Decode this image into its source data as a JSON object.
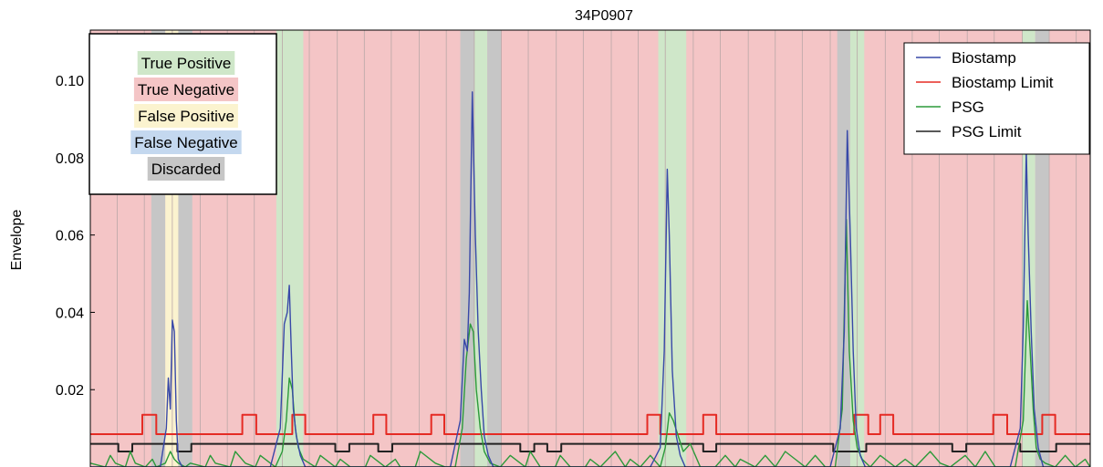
{
  "chart_data": {
    "type": "line",
    "title": "34P0907",
    "xlabel": "",
    "ylabel": "Envelope",
    "ylim": [
      0,
      0.113
    ],
    "y_ticks": [
      "0.02",
      "0.04",
      "0.06",
      "0.08",
      "0.10"
    ],
    "y_tick_values": [
      0.02,
      0.04,
      0.06,
      0.08,
      0.1
    ],
    "grid": false,
    "x_domain": [
      0,
      100
    ],
    "epoch_boundaries": [
      0,
      2.7,
      5.4,
      8.2,
      11.0,
      13.7,
      16.4,
      19.2,
      21.9,
      24.7,
      27.4,
      30.1,
      32.9,
      35.6,
      38.4,
      41.1,
      43.8,
      46.6,
      49.3,
      52.1,
      54.8,
      57.5,
      60.3,
      63.0,
      65.8,
      68.5,
      71.2,
      74.0,
      76.7,
      79.5,
      82.2,
      84.9,
      87.7,
      90.4,
      93.2,
      95.9,
      98.6,
      100
    ],
    "shaded_regions": [
      {
        "start": 6.1,
        "end": 7.5,
        "label": "Discarded"
      },
      {
        "start": 7.5,
        "end": 8.8,
        "label": "False Positive"
      },
      {
        "start": 8.8,
        "end": 10.2,
        "label": "Discarded"
      },
      {
        "start": 18.6,
        "end": 21.3,
        "label": "True Positive"
      },
      {
        "start": 37.0,
        "end": 38.4,
        "label": "Discarded"
      },
      {
        "start": 38.4,
        "end": 39.7,
        "label": "True Positive"
      },
      {
        "start": 39.7,
        "end": 41.1,
        "label": "Discarded"
      },
      {
        "start": 56.8,
        "end": 59.6,
        "label": "True Positive"
      },
      {
        "start": 74.7,
        "end": 76.0,
        "label": "Discarded"
      },
      {
        "start": 76.0,
        "end": 77.4,
        "label": "True Positive"
      },
      {
        "start": 93.2,
        "end": 94.5,
        "label": "True Positive"
      },
      {
        "start": 94.5,
        "end": 95.9,
        "label": "Discarded"
      }
    ],
    "default_region_label": "True Negative",
    "class_legend": [
      {
        "label": "True Positive",
        "color": "#cfe7c9"
      },
      {
        "label": "True Negative",
        "color": "#f4c5c6"
      },
      {
        "label": "False Positive",
        "color": "#fbf3cf"
      },
      {
        "label": "False Negative",
        "color": "#c4d8ef"
      },
      {
        "label": "Discarded",
        "color": "#c6c6c6"
      }
    ],
    "series": [
      {
        "name": "Biostamp",
        "color": "#3848a8",
        "x": [
          0,
          5,
          7.0,
          7.6,
          7.8,
          8.0,
          8.2,
          8.4,
          8.6,
          8.8,
          9.2,
          10,
          18,
          19.0,
          19.4,
          19.7,
          19.9,
          20.1,
          20.3,
          20.6,
          21.0,
          21.5,
          22,
          36,
          37.0,
          37.4,
          37.7,
          37.9,
          38.2,
          38.5,
          38.8,
          39.1,
          39.4,
          39.8,
          40.3,
          41,
          56,
          57.0,
          57.4,
          57.7,
          57.9,
          58.2,
          58.6,
          59.0,
          59.5,
          60,
          74,
          75.0,
          75.4,
          75.7,
          76.0,
          76.3,
          76.6,
          77.0,
          77.5,
          78,
          92,
          93.0,
          93.3,
          93.6,
          93.8,
          94.1,
          94.4,
          94.8,
          95.3,
          96,
          100
        ],
        "values": [
          0.0,
          0.0,
          0.0,
          0.01,
          0.023,
          0.015,
          0.038,
          0.035,
          0.012,
          0.002,
          0.0,
          0.0,
          0.0,
          0.01,
          0.037,
          0.04,
          0.047,
          0.03,
          0.015,
          0.008,
          0.003,
          0.0,
          0.0,
          0.0,
          0.012,
          0.033,
          0.03,
          0.045,
          0.097,
          0.06,
          0.035,
          0.02,
          0.008,
          0.003,
          0.0,
          0.0,
          0.0,
          0.005,
          0.03,
          0.077,
          0.06,
          0.025,
          0.008,
          0.003,
          0.0,
          0.0,
          0.0,
          0.01,
          0.035,
          0.087,
          0.06,
          0.03,
          0.01,
          0.003,
          0.0,
          0.0,
          0.0,
          0.01,
          0.036,
          0.082,
          0.06,
          0.035,
          0.015,
          0.005,
          0.0,
          0.0,
          0.0
        ]
      },
      {
        "name": "Biostamp Limit",
        "color": "#e52b24",
        "x": [
          0,
          5.2,
          5.2,
          6.6,
          6.6,
          15.2,
          15.2,
          16.6,
          16.6,
          20.2,
          20.2,
          21.5,
          21.5,
          28.3,
          28.3,
          29.6,
          29.6,
          34.1,
          34.1,
          35.4,
          35.4,
          55.7,
          55.7,
          57.0,
          57.0,
          61.3,
          61.3,
          62.6,
          62.6,
          76.4,
          76.4,
          77.8,
          77.8,
          79.0,
          79.0,
          80.3,
          80.3,
          90.3,
          90.3,
          91.7,
          91.7,
          95.2,
          95.2,
          96.5,
          96.5,
          100
        ],
        "values": [
          0.0085,
          0.0085,
          0.0135,
          0.0135,
          0.0085,
          0.0085,
          0.0135,
          0.0135,
          0.0085,
          0.0085,
          0.0135,
          0.0135,
          0.0085,
          0.0085,
          0.0135,
          0.0135,
          0.0085,
          0.0085,
          0.0135,
          0.0135,
          0.0085,
          0.0085,
          0.0135,
          0.0135,
          0.0085,
          0.0085,
          0.0135,
          0.0135,
          0.0085,
          0.0085,
          0.0135,
          0.0135,
          0.0085,
          0.0085,
          0.0135,
          0.0135,
          0.0085,
          0.0085,
          0.0135,
          0.0135,
          0.0085,
          0.0085,
          0.0135,
          0.0135,
          0.0085,
          0.0085
        ]
      },
      {
        "name": "PSG",
        "color": "#2c9a3a",
        "x": [
          0,
          1.5,
          2.0,
          2.5,
          3.5,
          4.0,
          4.5,
          5.5,
          6.2,
          6.6,
          7.5,
          8.0,
          8.4,
          8.8,
          9.5,
          10.0,
          11.5,
          12.0,
          12.5,
          14.0,
          14.5,
          15.5,
          16.5,
          17.0,
          18.5,
          19.2,
          19.6,
          19.9,
          20.2,
          20.5,
          20.8,
          21.3,
          22.5,
          23.0,
          24.5,
          25.0,
          26.0,
          27.5,
          28.0,
          29.5,
          30.5,
          31.0,
          32.5,
          33.0,
          34.5,
          35.5,
          36.5,
          37.2,
          37.6,
          38.0,
          38.3,
          38.6,
          39.0,
          39.4,
          40.0,
          41.0,
          42.0,
          43.5,
          44.0,
          45.0,
          46.5,
          47.0,
          48.0,
          49.5,
          50.0,
          51.0,
          52.5,
          53.5,
          54.0,
          55.0,
          56.0,
          57.0,
          57.5,
          57.9,
          58.3,
          58.8,
          59.3,
          60.0,
          61.0,
          62.5,
          63.5,
          64.5,
          65.0,
          66.5,
          67.5,
          68.5,
          69.5,
          70.5,
          71.5,
          72.5,
          73.5,
          74.5,
          75.2,
          75.6,
          75.9,
          76.3,
          76.7,
          77.2,
          78.0,
          79.0,
          80.5,
          81.5,
          82.5,
          84.0,
          85.0,
          86.0,
          87.5,
          88.5,
          89.5,
          90.5,
          91.5,
          92.5,
          93.3,
          93.7,
          94.0,
          94.3,
          94.6,
          95.0,
          95.5,
          96.5,
          97.5,
          98.5,
          99.5,
          100
        ],
        "values": [
          0.001,
          0.0,
          0.003,
          0.001,
          0.0,
          0.004,
          0.001,
          0.0,
          0.002,
          0.0,
          0.001,
          0.004,
          0.002,
          0.001,
          0.0,
          0.001,
          0.0,
          0.003,
          0.001,
          0.0,
          0.004,
          0.001,
          0.0,
          0.003,
          0.0,
          0.004,
          0.012,
          0.023,
          0.02,
          0.01,
          0.005,
          0.002,
          0.0,
          0.003,
          0.0,
          0.002,
          0.0,
          0.0,
          0.003,
          0.0,
          0.002,
          0.0,
          0.0,
          0.004,
          0.001,
          0.0,
          0.0,
          0.01,
          0.028,
          0.037,
          0.035,
          0.02,
          0.01,
          0.004,
          0.001,
          0.0,
          0.003,
          0.0,
          0.004,
          0.0,
          0.0,
          0.003,
          0.0,
          0.0,
          0.002,
          0.0,
          0.004,
          0.0,
          0.002,
          0.0,
          0.003,
          0.0,
          0.005,
          0.014,
          0.012,
          0.008,
          0.004,
          0.006,
          0.0,
          0.0,
          0.003,
          0.0,
          0.002,
          0.0,
          0.003,
          0.0,
          0.004,
          0.002,
          0.0,
          0.003,
          0.0,
          0.0,
          0.015,
          0.064,
          0.03,
          0.012,
          0.005,
          0.002,
          0.0,
          0.003,
          0.0,
          0.002,
          0.0,
          0.004,
          0.001,
          0.0,
          0.003,
          0.0,
          0.004,
          0.0,
          0.0,
          0.0,
          0.012,
          0.043,
          0.03,
          0.015,
          0.005,
          0.002,
          0.001,
          0.0,
          0.003,
          0.0,
          0.002,
          0.0
        ]
      },
      {
        "name": "PSG Limit",
        "color": "#222222",
        "x": [
          0,
          2.8,
          2.8,
          4.2,
          4.2,
          8.7,
          8.7,
          10.1,
          10.1,
          24.5,
          24.5,
          25.9,
          25.9,
          28.8,
          28.8,
          30.2,
          30.2,
          43.0,
          43.0,
          44.4,
          44.4,
          45.7,
          45.7,
          47.1,
          47.1,
          61.3,
          61.3,
          62.6,
          62.6,
          74.3,
          74.3,
          77.6,
          77.6,
          86.2,
          86.2,
          87.6,
          87.6,
          93.0,
          93.0,
          96.6,
          96.6,
          100
        ],
        "values": [
          0.006,
          0.006,
          0.004,
          0.004,
          0.006,
          0.006,
          0.004,
          0.004,
          0.006,
          0.006,
          0.004,
          0.004,
          0.006,
          0.006,
          0.004,
          0.004,
          0.006,
          0.006,
          0.004,
          0.004,
          0.006,
          0.006,
          0.004,
          0.004,
          0.006,
          0.006,
          0.004,
          0.004,
          0.006,
          0.006,
          0.004,
          0.004,
          0.006,
          0.006,
          0.004,
          0.004,
          0.006,
          0.006,
          0.004,
          0.004,
          0.006,
          0.006
        ]
      }
    ],
    "legend": {
      "placement": "top-right",
      "entries": [
        "Biostamp",
        "Biostamp Limit",
        "PSG",
        "PSG Limit"
      ]
    }
  }
}
